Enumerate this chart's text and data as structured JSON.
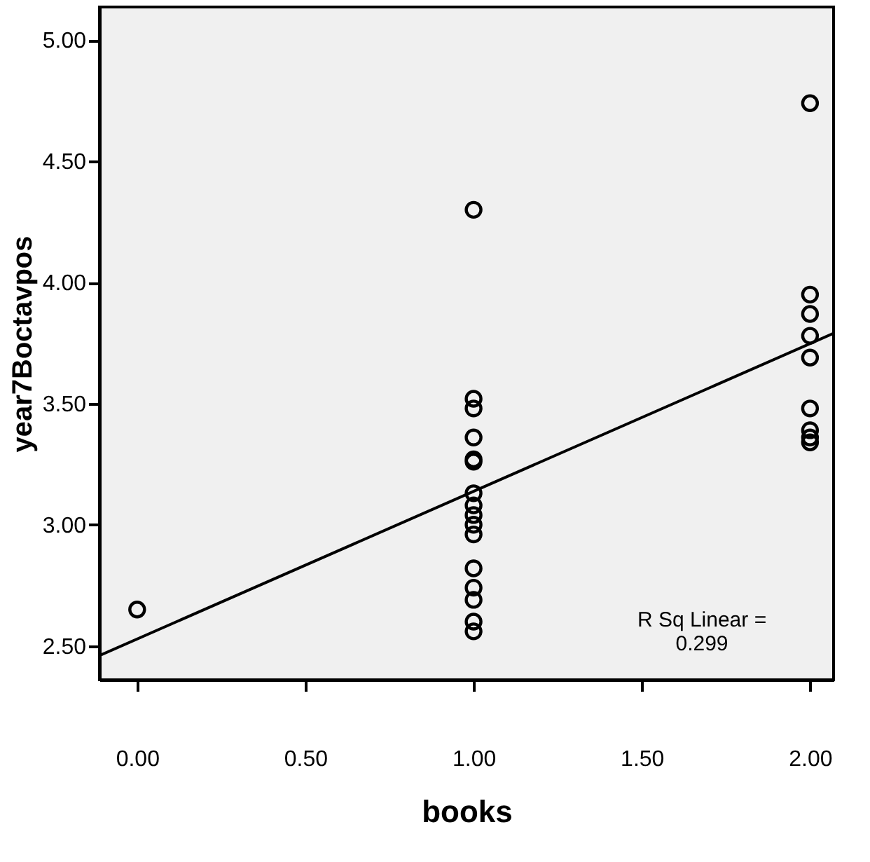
{
  "chart_data": {
    "type": "scatter",
    "xlabel": "books",
    "ylabel": "year7Boctavpos",
    "xlim": [
      -0.112,
      2.07
    ],
    "ylim": [
      2.36,
      5.137
    ],
    "xticks": [
      {
        "value": 0,
        "label": "0.00"
      },
      {
        "value": 0.5,
        "label": "0.50"
      },
      {
        "value": 1,
        "label": "1.00"
      },
      {
        "value": 1.5,
        "label": "1.50"
      },
      {
        "value": 2,
        "label": "2.00"
      }
    ],
    "yticks": [
      {
        "value": 2.5,
        "label": "2.50"
      },
      {
        "value": 3,
        "label": "3.00"
      },
      {
        "value": 3.5,
        "label": "3.50"
      },
      {
        "value": 4,
        "label": "4.00"
      },
      {
        "value": 4.5,
        "label": "4.50"
      },
      {
        "value": 5,
        "label": "5.00"
      }
    ],
    "grid": false,
    "marker": "circle",
    "series": [
      {
        "color": "#000000",
        "x": [
          0,
          1,
          1,
          1,
          1,
          1,
          1,
          1,
          1,
          1,
          1,
          1,
          1,
          1,
          1,
          1,
          1,
          2,
          2,
          2,
          2,
          2,
          2,
          2,
          2,
          2
        ],
        "values": [
          2.65,
          4.3,
          3.52,
          3.48,
          3.36,
          3.27,
          3.26,
          3.13,
          3.08,
          3.04,
          3.0,
          2.96,
          2.82,
          2.74,
          2.69,
          2.6,
          2.56,
          4.74,
          3.95,
          3.87,
          3.78,
          3.69,
          3.48,
          3.39,
          3.36,
          3.34
        ]
      },
      {
        "type": "line",
        "color": "#000000",
        "marker": "none",
        "line_style": "solid",
        "x": [
          -0.112,
          2.07
        ],
        "values": [
          2.46,
          3.79
        ]
      }
    ],
    "annotations": [
      "R Sq Linear =\n0.299"
    ]
  }
}
